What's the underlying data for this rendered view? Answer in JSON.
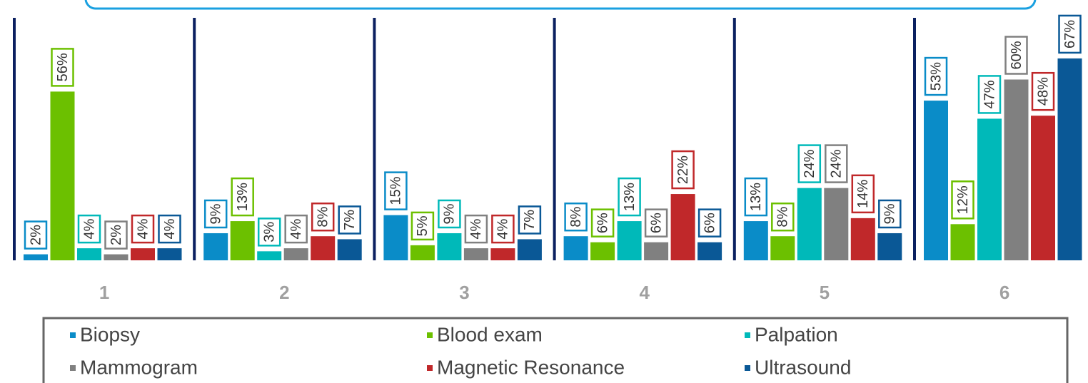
{
  "chart_data": {
    "type": "bar",
    "categories": [
      "1",
      "2",
      "3",
      "4",
      "5",
      "6"
    ],
    "ylim": [
      0,
      80
    ],
    "legend": "bottom",
    "series": [
      {
        "name": "Biopsy",
        "color": "#0a8cc8",
        "values": [
          2,
          9,
          15,
          8,
          13,
          53
        ],
        "value_labels": [
          "2%",
          "9%",
          "15%",
          "8%",
          "13%",
          "53%"
        ]
      },
      {
        "name": "Blood exam",
        "color": "#6cc000",
        "values": [
          56,
          13,
          5,
          6,
          8,
          12
        ],
        "value_labels": [
          "56%",
          "13%",
          "5%",
          "6%",
          "8%",
          "12%"
        ]
      },
      {
        "name": "Palpation",
        "color": "#00b9b9",
        "values": [
          4,
          3,
          9,
          13,
          24,
          47
        ],
        "value_labels": [
          "4%",
          "3%",
          "9%",
          "13%",
          "24%",
          "47%"
        ]
      },
      {
        "name": "Mammogram",
        "color": "#808080",
        "values": [
          2,
          4,
          4,
          6,
          24,
          60
        ],
        "value_labels": [
          "2%",
          "4%",
          "4%",
          "6%",
          "24%",
          "60%"
        ]
      },
      {
        "name": "Magnetic Resonance",
        "color": "#c0282a",
        "values": [
          4,
          8,
          4,
          22,
          14,
          48
        ],
        "value_labels": [
          "4%",
          "8%",
          "4%",
          "22%",
          "14%",
          "48%"
        ]
      },
      {
        "name": "Ultrasound",
        "color": "#0a5896",
        "values": [
          4,
          7,
          7,
          6,
          9,
          67
        ],
        "value_labels": [
          "4%",
          "7%",
          "7%",
          "6%",
          "9%",
          "67%"
        ]
      }
    ]
  }
}
